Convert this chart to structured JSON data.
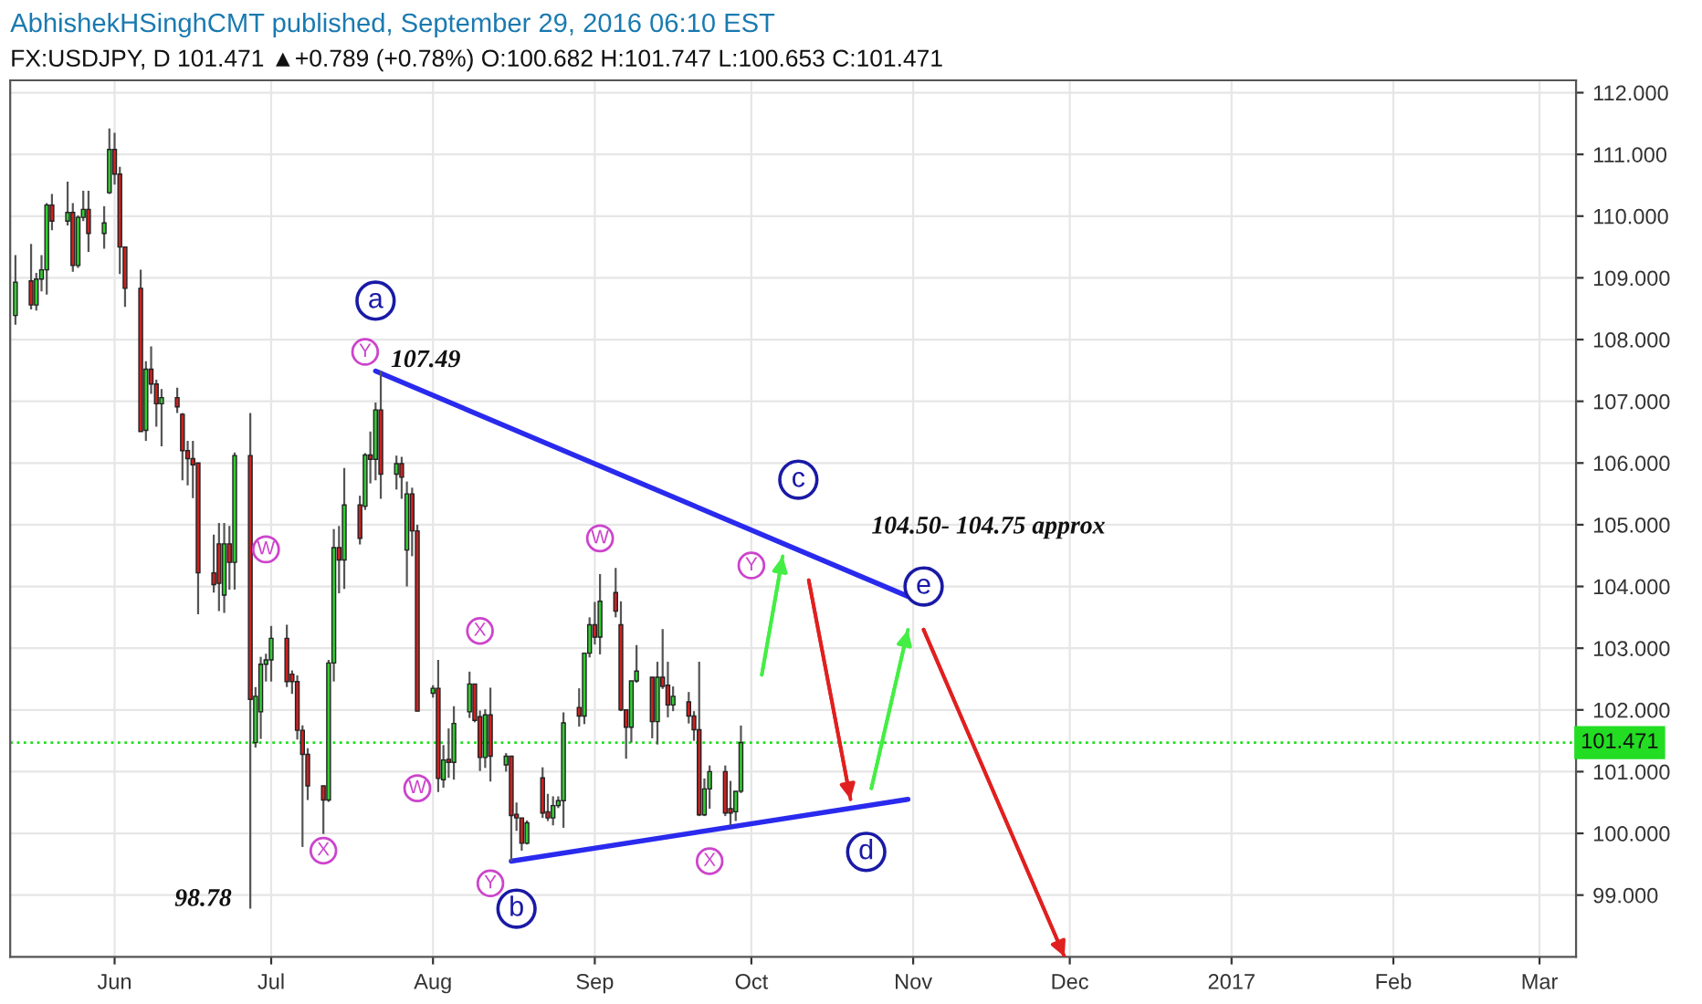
{
  "chart_data": {
    "type": "candlestick",
    "title": "AbhishekHSinghCMT published, September 29, 2016 06:10 EST",
    "subtitle": "FX:USDJPY, D 101.471 ▲+0.789 (+0.78%) O:100.682 H:101.747 L:100.653 C:101.471",
    "x": [
      "2016-05-13",
      "2016-05-16",
      "2016-05-17",
      "2016-05-18",
      "2016-05-19",
      "2016-05-20",
      "2016-05-23",
      "2016-05-24",
      "2016-05-25",
      "2016-05-26",
      "2016-05-27",
      "2016-05-30",
      "2016-05-31",
      "2016-06-01",
      "2016-06-02",
      "2016-06-03",
      "2016-06-06",
      "2016-06-07",
      "2016-06-08",
      "2016-06-09",
      "2016-06-10",
      "2016-06-13",
      "2016-06-14",
      "2016-06-15",
      "2016-06-16",
      "2016-06-17",
      "2016-06-20",
      "2016-06-21",
      "2016-06-22",
      "2016-06-23",
      "2016-06-24",
      "2016-06-27",
      "2016-06-28",
      "2016-06-29",
      "2016-06-30",
      "2016-07-01",
      "2016-07-04",
      "2016-07-05",
      "2016-07-06",
      "2016-07-07",
      "2016-07-08",
      "2016-07-11",
      "2016-07-12",
      "2016-07-13",
      "2016-07-14",
      "2016-07-15",
      "2016-07-18",
      "2016-07-19",
      "2016-07-20",
      "2016-07-21",
      "2016-07-22",
      "2016-07-25",
      "2016-07-26",
      "2016-07-27",
      "2016-07-28",
      "2016-07-29",
      "2016-08-01",
      "2016-08-02",
      "2016-08-03",
      "2016-08-04",
      "2016-08-05",
      "2016-08-08",
      "2016-08-09",
      "2016-08-10",
      "2016-08-11",
      "2016-08-12",
      "2016-08-15",
      "2016-08-16",
      "2016-08-17",
      "2016-08-18",
      "2016-08-19",
      "2016-08-22",
      "2016-08-23",
      "2016-08-24",
      "2016-08-25",
      "2016-08-26",
      "2016-08-29",
      "2016-08-30",
      "2016-08-31",
      "2016-09-01",
      "2016-09-02",
      "2016-09-05",
      "2016-09-06",
      "2016-09-07",
      "2016-09-08",
      "2016-09-09",
      "2016-09-12",
      "2016-09-13",
      "2016-09-14",
      "2016-09-15",
      "2016-09-16",
      "2016-09-19",
      "2016-09-20",
      "2016-09-21",
      "2016-09-22",
      "2016-09-23",
      "2016-09-26",
      "2016-09-27",
      "2016-09-28",
      "2016-09-29"
    ],
    "ohlc": [
      [
        108.39,
        109.37,
        108.24,
        108.93
      ],
      [
        108.95,
        109.55,
        108.49,
        108.56
      ],
      [
        108.56,
        109.08,
        108.47,
        108.98
      ],
      [
        108.98,
        109.37,
        108.78,
        109.13
      ],
      [
        109.13,
        110.21,
        108.73,
        110.18
      ],
      [
        110.18,
        110.36,
        109.77,
        109.92
      ],
      [
        109.92,
        110.56,
        109.85,
        110.06
      ],
      [
        110.06,
        110.21,
        109.1,
        109.2
      ],
      [
        109.2,
        110.01,
        109.16,
        109.98
      ],
      [
        109.98,
        110.41,
        109.92,
        110.11
      ],
      [
        110.11,
        110.41,
        109.42,
        109.72
      ],
      [
        109.72,
        110.16,
        109.47,
        109.89
      ],
      [
        110.38,
        111.42,
        110.36,
        111.08
      ],
      [
        111.08,
        111.35,
        110.51,
        110.68
      ],
      [
        110.68,
        110.8,
        109.06,
        109.5
      ],
      [
        109.5,
        109.5,
        108.53,
        108.83
      ],
      [
        108.83,
        109.13,
        106.51,
        106.51
      ],
      [
        106.53,
        107.65,
        106.36,
        107.52
      ],
      [
        107.52,
        107.89,
        107.12,
        107.28
      ],
      [
        107.28,
        107.35,
        106.59,
        106.96
      ],
      [
        106.96,
        107.2,
        106.27,
        107.06
      ],
      [
        107.06,
        107.22,
        106.81,
        106.91
      ],
      [
        106.79,
        106.81,
        105.72,
        106.2
      ],
      [
        106.2,
        106.36,
        105.64,
        106.07
      ],
      [
        106.07,
        106.36,
        105.43,
        105.97
      ],
      [
        106.0,
        106.0,
        103.55,
        104.22
      ],
      [
        104.22,
        104.84,
        103.9,
        104.03
      ],
      [
        104.69,
        105.03,
        103.6,
        104.05
      ],
      [
        103.86,
        105.03,
        103.57,
        104.69
      ],
      [
        104.69,
        104.98,
        103.95,
        104.39
      ],
      [
        104.39,
        106.17,
        103.95,
        106.12
      ],
      [
        106.12,
        106.81,
        98.78,
        102.17
      ],
      [
        101.47,
        102.37,
        101.39,
        102.22
      ],
      [
        101.97,
        102.86,
        101.53,
        102.74
      ],
      [
        102.74,
        102.91,
        102.46,
        102.81
      ],
      [
        102.81,
        103.36,
        102.46,
        103.16
      ],
      [
        103.16,
        103.38,
        102.37,
        102.46
      ],
      [
        102.58,
        102.64,
        102.26,
        102.46
      ],
      [
        102.46,
        102.56,
        101.52,
        101.67
      ],
      [
        101.67,
        101.75,
        99.78,
        101.28
      ],
      [
        101.28,
        101.38,
        100.54,
        100.77
      ],
      [
        100.77,
        100.77,
        99.99,
        100.54
      ],
      [
        100.54,
        102.81,
        100.51,
        102.76
      ],
      [
        102.76,
        104.93,
        102.46,
        104.63
      ],
      [
        104.63,
        104.98,
        103.89,
        104.43
      ],
      [
        104.43,
        105.92,
        103.96,
        105.32
      ],
      [
        105.32,
        105.47,
        104.68,
        104.78
      ],
      [
        105.3,
        106.16,
        105.24,
        106.13
      ],
      [
        106.13,
        106.51,
        105.67,
        106.06
      ],
      [
        106.06,
        106.98,
        105.72,
        106.86
      ],
      [
        106.86,
        107.49,
        105.42,
        105.82
      ],
      [
        105.82,
        106.12,
        105.57,
        105.99
      ],
      [
        105.99,
        106.1,
        105.42,
        105.77
      ],
      [
        104.59,
        105.7,
        104.0,
        105.5
      ],
      [
        105.5,
        105.6,
        104.49,
        104.9
      ],
      [
        104.9,
        105.0,
        101.98,
        101.98
      ],
      [
        102.27,
        102.4,
        102.2,
        102.35
      ],
      [
        102.35,
        102.81,
        100.67,
        100.89
      ],
      [
        100.87,
        101.43,
        100.74,
        101.19
      ],
      [
        101.2,
        101.7,
        100.9,
        101.15
      ],
      [
        101.15,
        102.06,
        100.87,
        101.78
      ],
      [
        101.97,
        102.62,
        101.87,
        102.42
      ],
      [
        102.42,
        102.42,
        101.8,
        101.83
      ],
      [
        101.89,
        101.99,
        101.01,
        101.23
      ],
      [
        101.23,
        102.01,
        101.06,
        101.92
      ],
      [
        101.92,
        102.36,
        100.84,
        101.25
      ],
      [
        101.11,
        101.3,
        101.0,
        101.25
      ],
      [
        101.25,
        101.25,
        99.54,
        100.29
      ],
      [
        100.31,
        100.5,
        100.04,
        100.25
      ],
      [
        100.25,
        100.25,
        99.72,
        99.84
      ],
      [
        99.84,
        100.21,
        99.82,
        100.17
      ],
      [
        100.9,
        101.07,
        100.25,
        100.33
      ],
      [
        100.35,
        100.64,
        100.2,
        100.25
      ],
      [
        100.25,
        100.6,
        100.13,
        100.45
      ],
      [
        100.45,
        100.6,
        100.41,
        100.53
      ],
      [
        100.53,
        101.96,
        100.09,
        101.79
      ],
      [
        102.04,
        102.35,
        101.73,
        101.9
      ],
      [
        101.9,
        102.92,
        101.77,
        102.92
      ],
      [
        102.92,
        103.5,
        102.85,
        103.38
      ],
      [
        103.38,
        103.75,
        103.06,
        103.18
      ],
      [
        103.18,
        104.2,
        102.9,
        103.76
      ],
      [
        103.9,
        104.3,
        103.5,
        103.6
      ],
      [
        103.38,
        103.76,
        101.98,
        102.0
      ],
      [
        102.0,
        102.0,
        101.21,
        101.72
      ],
      [
        101.72,
        102.47,
        101.47,
        102.47
      ],
      [
        102.47,
        103.05,
        102.44,
        102.63
      ],
      [
        102.53,
        102.53,
        101.54,
        101.81
      ],
      [
        101.81,
        102.78,
        101.44,
        102.53
      ],
      [
        102.53,
        103.31,
        102.34,
        102.38
      ],
      [
        102.4,
        102.78,
        101.88,
        102.08
      ],
      [
        102.08,
        102.38,
        101.98,
        102.22
      ],
      [
        102.13,
        102.29,
        101.78,
        101.9
      ],
      [
        101.9,
        101.98,
        101.5,
        101.68
      ],
      [
        101.68,
        102.78,
        100.28,
        100.3
      ],
      [
        100.3,
        100.89,
        100.28,
        100.72
      ],
      [
        100.72,
        101.1,
        100.4,
        101.0
      ],
      [
        101.0,
        101.1,
        100.28,
        100.33
      ],
      [
        100.4,
        100.85,
        100.13,
        100.33
      ],
      [
        100.35,
        100.68,
        100.2,
        100.68
      ],
      [
        100.682,
        101.747,
        100.653,
        101.471
      ]
    ],
    "colors": [
      "#33cc33",
      "#cc2222",
      "#33cc33",
      "#33cc33",
      "#33cc33",
      "#cc2222",
      "#33cc33",
      "#cc2222",
      "#33cc33",
      "#33cc33",
      "#cc2222",
      "#33cc33",
      "#33cc33",
      "#cc2222",
      "#cc2222",
      "#cc2222",
      "#cc2222",
      "#33cc33",
      "#cc2222",
      "#cc2222",
      "#33cc33",
      "#cc2222",
      "#cc2222",
      "#cc2222",
      "#cc2222",
      "#cc2222",
      "#cc2222",
      "#cc2222",
      "#33cc33",
      "#cc2222",
      "#33cc33",
      "#cc2222",
      "#33cc33",
      "#33cc33",
      "#33cc33",
      "#33cc33",
      "#cc2222",
      "#cc2222",
      "#cc2222",
      "#cc2222",
      "#cc2222",
      "#cc2222",
      "#33cc33",
      "#33cc33",
      "#cc2222",
      "#33cc33",
      "#cc2222",
      "#33cc33",
      "#cc2222",
      "#33cc33",
      "#cc2222",
      "#33cc33",
      "#cc2222",
      "#33cc33",
      "#cc2222",
      "#cc2222",
      "#33cc33",
      "#cc2222",
      "#33cc33",
      "#cc2222",
      "#33cc33",
      "#33cc33",
      "#cc2222",
      "#cc2222",
      "#33cc33",
      "#cc2222",
      "#33cc33",
      "#cc2222",
      "#cc2222",
      "#cc2222",
      "#33cc33",
      "#cc2222",
      "#cc2222",
      "#33cc33",
      "#33cc33",
      "#33cc33",
      "#cc2222",
      "#33cc33",
      "#33cc33",
      "#cc2222",
      "#33cc33",
      "#cc2222",
      "#cc2222",
      "#cc2222",
      "#33cc33",
      "#33cc33",
      "#cc2222",
      "#33cc33",
      "#cc2222",
      "#cc2222",
      "#33cc33",
      "#cc2222",
      "#cc2222",
      "#cc2222",
      "#33cc33",
      "#33cc33",
      "#cc2222",
      "#cc2222",
      "#33cc33",
      "#33cc33"
    ],
    "series": [
      {
        "type": "line",
        "color": "#2a2aee",
        "x": [
          "2016-07-21",
          "2016-10-31"
        ],
        "values": [
          107.49,
          103.84
        ]
      },
      {
        "type": "line",
        "color": "#2a2aee",
        "x": [
          "2016-08-16",
          "2016-10-31"
        ],
        "values": [
          99.55,
          100.55
        ]
      },
      {
        "type": "line",
        "color": "#44ee44",
        "x": [
          "2016-10-03",
          "2016-10-07"
        ],
        "values": [
          102.57,
          104.49
        ]
      },
      {
        "type": "line",
        "color": "#e02020",
        "x": [
          "2016-10-12",
          "2016-10-20"
        ],
        "values": [
          104.1,
          100.55
        ]
      },
      {
        "type": "line",
        "color": "#44ee44",
        "x": [
          "2016-10-24",
          "2016-10-31"
        ],
        "values": [
          100.73,
          103.3
        ]
      },
      {
        "type": "line",
        "color": "#e02020",
        "x": [
          "2016-11-03",
          "2016-11-30"
        ],
        "values": [
          103.3,
          98.0
        ]
      }
    ],
    "annotations": [
      {
        "text": "a",
        "x": "2016-07-21",
        "y": 108.63
      },
      {
        "text": "b",
        "x": "2016-08-17",
        "y": 98.78
      },
      {
        "text": "c",
        "x": "2016-10-10",
        "y": 105.73
      },
      {
        "text": "d",
        "x": "2016-10-23",
        "y": 99.7
      },
      {
        "text": "e",
        "x": "2016-11-03",
        "y": 104.0
      },
      {
        "text": "Y",
        "x": "2016-07-19",
        "y": 107.8
      },
      {
        "text": "W",
        "x": "2016-06-30",
        "y": 104.6
      },
      {
        "text": "X",
        "x": "2016-07-11",
        "y": 99.72
      },
      {
        "text": "W",
        "x": "2016-07-29",
        "y": 100.73
      },
      {
        "text": "X",
        "x": "2016-08-10",
        "y": 103.28
      },
      {
        "text": "Y",
        "x": "2016-08-12",
        "y": 99.19
      },
      {
        "text": "W",
        "x": "2016-09-02",
        "y": 104.78
      },
      {
        "text": "X",
        "x": "2016-09-23",
        "y": 99.55
      },
      {
        "text": "Y",
        "x": "2016-10-01",
        "y": 104.34
      },
      {
        "text": "107.49",
        "x": "2016-07-21",
        "y": 107.49
      },
      "98.78",
      "104.50- 104.75 approx"
    ],
    "ref_lines": [
      {
        "axis": "y",
        "value": 101.471,
        "label": "101.471",
        "color": "#22dd22",
        "line_style": "dotted"
      }
    ],
    "xlim": [
      "2016-05-12",
      "2017-03-08"
    ],
    "xticks": [
      {
        "value": "2016-06-01",
        "label": "Jun"
      },
      {
        "value": "2016-07-01",
        "label": "Jul"
      },
      {
        "value": "2016-08-01",
        "label": "Aug"
      },
      {
        "value": "2016-09-01",
        "label": "Sep"
      },
      {
        "value": "2016-10-01",
        "label": "Oct"
      },
      {
        "value": "2016-11-01",
        "label": "Nov"
      },
      {
        "value": "2016-12-01",
        "label": "Dec"
      },
      {
        "value": "2017-01-01",
        "label": "2017"
      },
      {
        "value": "2017-02-01",
        "label": "Feb"
      },
      {
        "value": "2017-03-01",
        "label": "Mar"
      }
    ],
    "ylim": [
      98.0,
      112.2
    ],
    "yticks": [
      {
        "value": 99,
        "label": "99.000"
      },
      {
        "value": 100,
        "label": "100.000"
      },
      {
        "value": 101,
        "label": "101.000"
      },
      {
        "value": 102,
        "label": "102.000"
      },
      {
        "value": 103,
        "label": "103.000"
      },
      {
        "value": 104,
        "label": "104.000"
      },
      {
        "value": 105,
        "label": "105.000"
      },
      {
        "value": 106,
        "label": "106.000"
      },
      {
        "value": 107,
        "label": "107.000"
      },
      {
        "value": 108,
        "label": "108.000"
      },
      {
        "value": 109,
        "label": "109.000"
      },
      {
        "value": 110,
        "label": "110.000"
      },
      {
        "value": 111,
        "label": "111.000"
      },
      {
        "value": 112,
        "label": "112.000"
      }
    ],
    "grid": true,
    "legend": false
  }
}
